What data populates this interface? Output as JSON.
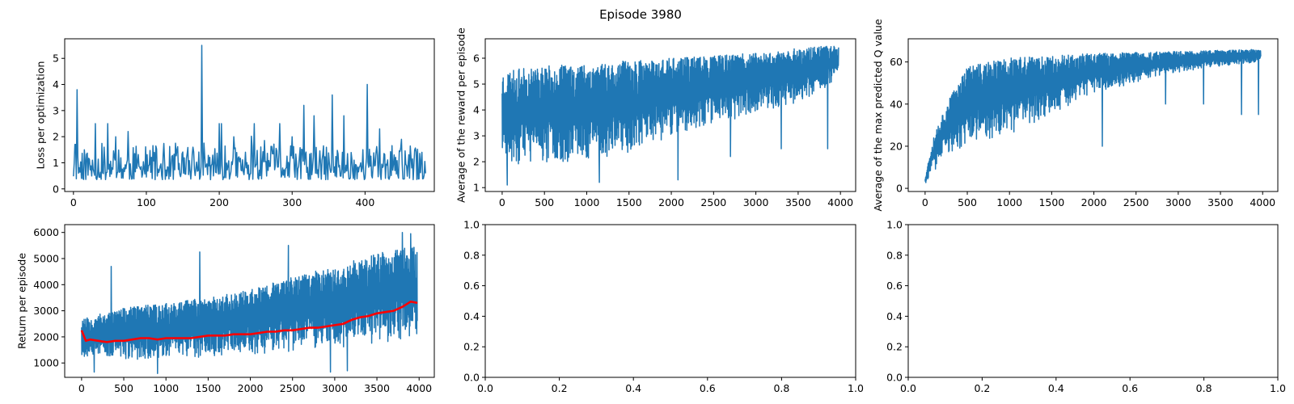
{
  "figure": {
    "suptitle": "Episode 3980"
  },
  "colors": {
    "series_blue": "#1f77b4",
    "rolling_red": "#ff0000",
    "axes": "#000000"
  },
  "chart_data": [
    {
      "type": "line",
      "title": "",
      "xlabel": "",
      "ylabel": "Loss per optimization",
      "xlim": [
        -12,
        495
      ],
      "ylim": [
        -0.1,
        5.75
      ],
      "xticks": [
        0,
        100,
        200,
        300,
        400
      ],
      "yticks": [
        0,
        1,
        2,
        3,
        4,
        5
      ],
      "grid": false,
      "gen": {
        "kind": "loss",
        "n": 484,
        "seed": 11,
        "spikes": [
          [
            2,
            1.7
          ],
          [
            5,
            3.8
          ],
          [
            30,
            2.5
          ],
          [
            47,
            2.5
          ],
          [
            58,
            2.0
          ],
          [
            75,
            2.2
          ],
          [
            176,
            5.5
          ],
          [
            200,
            2.5
          ],
          [
            203,
            2.5
          ],
          [
            220,
            2.0
          ],
          [
            248,
            2.5
          ],
          [
            283,
            2.5
          ],
          [
            300,
            2.0
          ],
          [
            316,
            3.2
          ],
          [
            330,
            2.8
          ],
          [
            355,
            3.6
          ],
          [
            371,
            2.8
          ],
          [
            403,
            4.0
          ],
          [
            420,
            2.3
          ],
          [
            450,
            1.9
          ],
          [
            478,
            1.4
          ]
        ]
      },
      "series": [
        {
          "color": "#1f77b4"
        }
      ]
    },
    {
      "type": "line",
      "title": "",
      "xlabel": "",
      "ylabel": "Average of the reward per episode",
      "xlim": [
        -200,
        4180
      ],
      "ylim": [
        0.85,
        6.75
      ],
      "xticks": [
        0,
        500,
        1000,
        1500,
        2000,
        2500,
        3000,
        3500,
        4000
      ],
      "yticks": [
        1,
        2,
        3,
        4,
        5,
        6
      ],
      "grid": false,
      "gen": {
        "kind": "band",
        "n": 3980,
        "seed": 23,
        "step": 3,
        "upper": [
          [
            0,
            5.5
          ],
          [
            500,
            5.7
          ],
          [
            1000,
            5.8
          ],
          [
            1500,
            5.9
          ],
          [
            2000,
            6.0
          ],
          [
            2500,
            6.1
          ],
          [
            3000,
            6.2
          ],
          [
            3500,
            6.4
          ],
          [
            3980,
            6.5
          ]
        ],
        "lower": [
          [
            0,
            1.7
          ],
          [
            500,
            1.9
          ],
          [
            1000,
            2.0
          ],
          [
            1500,
            2.3
          ],
          [
            2000,
            3.0
          ],
          [
            2500,
            3.5
          ],
          [
            3000,
            3.8
          ],
          [
            3500,
            4.2
          ],
          [
            3980,
            5.2
          ]
        ],
        "dips": [
          [
            2080,
            1.3
          ],
          [
            1150,
            1.2
          ],
          [
            60,
            1.1
          ],
          [
            3300,
            2.5
          ],
          [
            3850,
            2.5
          ],
          [
            2700,
            2.2
          ]
        ]
      },
      "series": [
        {
          "color": "#1f77b4"
        }
      ]
    },
    {
      "type": "line",
      "title": "",
      "xlabel": "",
      "ylabel": "Average of the max predicted Q value",
      "xlim": [
        -200,
        4180
      ],
      "ylim": [
        -1.5,
        71
      ],
      "xticks": [
        0,
        500,
        1000,
        1500,
        2000,
        2500,
        3000,
        3500,
        4000
      ],
      "yticks": [
        0,
        20,
        40,
        60
      ],
      "grid": false,
      "gen": {
        "kind": "band",
        "n": 3980,
        "seed": 37,
        "step": 3,
        "upper": [
          [
            0,
            5
          ],
          [
            100,
            25
          ],
          [
            250,
            40
          ],
          [
            500,
            58
          ],
          [
            1000,
            62
          ],
          [
            2000,
            64
          ],
          [
            3000,
            65
          ],
          [
            3980,
            66
          ]
        ],
        "lower": [
          [
            0,
            2
          ],
          [
            100,
            8
          ],
          [
            250,
            15
          ],
          [
            500,
            20
          ],
          [
            1000,
            25
          ],
          [
            1500,
            35
          ],
          [
            2000,
            45
          ],
          [
            2500,
            50
          ],
          [
            3000,
            55
          ],
          [
            3500,
            58
          ],
          [
            3980,
            60
          ]
        ],
        "dips": [
          [
            2100,
            20
          ],
          [
            3750,
            35
          ],
          [
            3950,
            35
          ],
          [
            3300,
            40
          ],
          [
            2850,
            40
          ]
        ]
      },
      "series": [
        {
          "color": "#1f77b4"
        }
      ]
    },
    {
      "type": "line",
      "title": "",
      "xlabel": "",
      "ylabel": "Return per episode",
      "xlim": [
        -200,
        4180
      ],
      "ylim": [
        450,
        6300
      ],
      "xticks": [
        0,
        500,
        1000,
        1500,
        2000,
        2500,
        3000,
        3500,
        4000
      ],
      "yticks": [
        1000,
        2000,
        3000,
        4000,
        5000,
        6000
      ],
      "grid": false,
      "gen": {
        "kind": "band",
        "n": 3980,
        "seed": 53,
        "step": 3,
        "upper": [
          [
            0,
            2700
          ],
          [
            500,
            3100
          ],
          [
            1000,
            3300
          ],
          [
            1500,
            3500
          ],
          [
            2000,
            3800
          ],
          [
            2500,
            4300
          ],
          [
            3000,
            4700
          ],
          [
            3500,
            5200
          ],
          [
            3980,
            5500
          ]
        ],
        "lower": [
          [
            0,
            1200
          ],
          [
            500,
            1100
          ],
          [
            1000,
            1100
          ],
          [
            1500,
            1200
          ],
          [
            2000,
            1300
          ],
          [
            2500,
            1400
          ],
          [
            3000,
            1500
          ],
          [
            3500,
            1700
          ],
          [
            3980,
            1900
          ]
        ],
        "dips": [
          [
            2950,
            650
          ],
          [
            3150,
            700
          ],
          [
            150,
            650
          ],
          [
            900,
            600
          ]
        ],
        "peaks": [
          [
            3800,
            6000
          ],
          [
            3900,
            5950
          ],
          [
            2450,
            5500
          ],
          [
            1400,
            5250
          ],
          [
            350,
            4700
          ]
        ]
      },
      "series": [
        {
          "color": "#1f77b4"
        },
        {
          "name": "",
          "color": "#ff0000",
          "kind": "rolling",
          "points": [
            [
              0,
              2250
            ],
            [
              50,
              1850
            ],
            [
              100,
              1900
            ],
            [
              200,
              1850
            ],
            [
              300,
              1800
            ],
            [
              400,
              1850
            ],
            [
              500,
              1850
            ],
            [
              600,
              1900
            ],
            [
              700,
              1950
            ],
            [
              800,
              1950
            ],
            [
              900,
              1900
            ],
            [
              1000,
              1950
            ],
            [
              1100,
              1950
            ],
            [
              1200,
              1950
            ],
            [
              1300,
              1950
            ],
            [
              1400,
              2000
            ],
            [
              1500,
              2050
            ],
            [
              1600,
              2050
            ],
            [
              1700,
              2050
            ],
            [
              1800,
              2100
            ],
            [
              1900,
              2100
            ],
            [
              2000,
              2100
            ],
            [
              2100,
              2150
            ],
            [
              2200,
              2200
            ],
            [
              2300,
              2200
            ],
            [
              2400,
              2250
            ],
            [
              2500,
              2250
            ],
            [
              2600,
              2300
            ],
            [
              2700,
              2350
            ],
            [
              2800,
              2350
            ],
            [
              2900,
              2400
            ],
            [
              3000,
              2450
            ],
            [
              3100,
              2500
            ],
            [
              3200,
              2650
            ],
            [
              3300,
              2750
            ],
            [
              3400,
              2800
            ],
            [
              3500,
              2900
            ],
            [
              3600,
              2950
            ],
            [
              3700,
              3000
            ],
            [
              3800,
              3150
            ],
            [
              3900,
              3350
            ],
            [
              3980,
              3300
            ]
          ]
        }
      ]
    },
    {
      "type": "line",
      "title": "",
      "xlabel": "",
      "ylabel": "",
      "xlim": [
        0,
        1
      ],
      "ylim": [
        0,
        1
      ],
      "xticks": [
        "0.0",
        "0.2",
        "0.4",
        "0.6",
        "0.8",
        "1.0"
      ],
      "yticks": [
        "0.0",
        "0.2",
        "0.4",
        "0.6",
        "0.8",
        "1.0"
      ],
      "grid": false,
      "series": []
    },
    {
      "type": "line",
      "title": "",
      "xlabel": "",
      "ylabel": "",
      "xlim": [
        0,
        1
      ],
      "ylim": [
        0,
        1
      ],
      "xticks": [
        "0.0",
        "0.2",
        "0.4",
        "0.6",
        "0.8",
        "1.0"
      ],
      "yticks": [
        "0.0",
        "0.2",
        "0.4",
        "0.6",
        "0.8",
        "1.0"
      ],
      "grid": false,
      "series": []
    }
  ]
}
